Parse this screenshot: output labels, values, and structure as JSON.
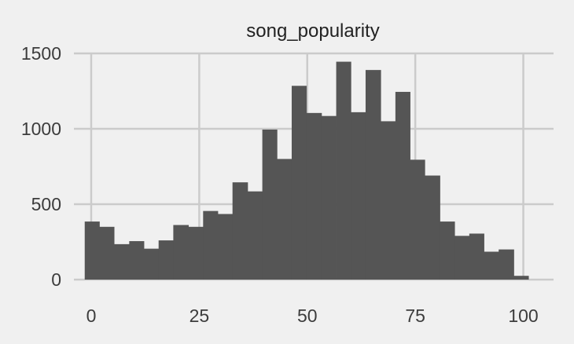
{
  "chart_data": {
    "type": "bar",
    "title": "song_popularity",
    "xlabel": "",
    "ylabel": "",
    "xlim": [
      -4,
      107
    ],
    "ylim": [
      0,
      1500
    ],
    "xticks": [
      0,
      25,
      50,
      75,
      100
    ],
    "yticks": [
      0,
      500,
      1000,
      1500
    ],
    "grid": true,
    "bar_color": "#555555",
    "bins": [
      {
        "x0": -1.5,
        "x1": 1.9,
        "value": 385
      },
      {
        "x0": 1.9,
        "x1": 5.3,
        "value": 350
      },
      {
        "x0": 5.3,
        "x1": 8.8,
        "value": 235
      },
      {
        "x0": 8.8,
        "x1": 12.2,
        "value": 255
      },
      {
        "x0": 12.2,
        "x1": 15.6,
        "value": 205
      },
      {
        "x0": 15.6,
        "x1": 19.0,
        "value": 260
      },
      {
        "x0": 19.0,
        "x1": 22.5,
        "value": 362
      },
      {
        "x0": 22.5,
        "x1": 25.9,
        "value": 350
      },
      {
        "x0": 25.9,
        "x1": 29.3,
        "value": 455
      },
      {
        "x0": 29.3,
        "x1": 32.7,
        "value": 435
      },
      {
        "x0": 32.7,
        "x1": 36.2,
        "value": 645
      },
      {
        "x0": 36.2,
        "x1": 39.6,
        "value": 585
      },
      {
        "x0": 39.6,
        "x1": 43.0,
        "value": 995
      },
      {
        "x0": 43.0,
        "x1": 46.4,
        "value": 800
      },
      {
        "x0": 46.4,
        "x1": 49.8,
        "value": 1285
      },
      {
        "x0": 49.8,
        "x1": 53.3,
        "value": 1105
      },
      {
        "x0": 53.3,
        "x1": 56.7,
        "value": 1085
      },
      {
        "x0": 56.7,
        "x1": 60.1,
        "value": 1445
      },
      {
        "x0": 60.1,
        "x1": 63.5,
        "value": 1110
      },
      {
        "x0": 63.5,
        "x1": 67.0,
        "value": 1390
      },
      {
        "x0": 67.0,
        "x1": 70.4,
        "value": 1050
      },
      {
        "x0": 70.4,
        "x1": 73.8,
        "value": 1245
      },
      {
        "x0": 73.8,
        "x1": 77.2,
        "value": 795
      },
      {
        "x0": 77.2,
        "x1": 80.7,
        "value": 690
      },
      {
        "x0": 80.7,
        "x1": 84.1,
        "value": 385
      },
      {
        "x0": 84.1,
        "x1": 87.5,
        "value": 290
      },
      {
        "x0": 87.5,
        "x1": 90.9,
        "value": 305
      },
      {
        "x0": 90.9,
        "x1": 94.3,
        "value": 185
      },
      {
        "x0": 94.3,
        "x1": 97.8,
        "value": 200
      },
      {
        "x0": 97.8,
        "x1": 101.2,
        "value": 25
      }
    ]
  }
}
